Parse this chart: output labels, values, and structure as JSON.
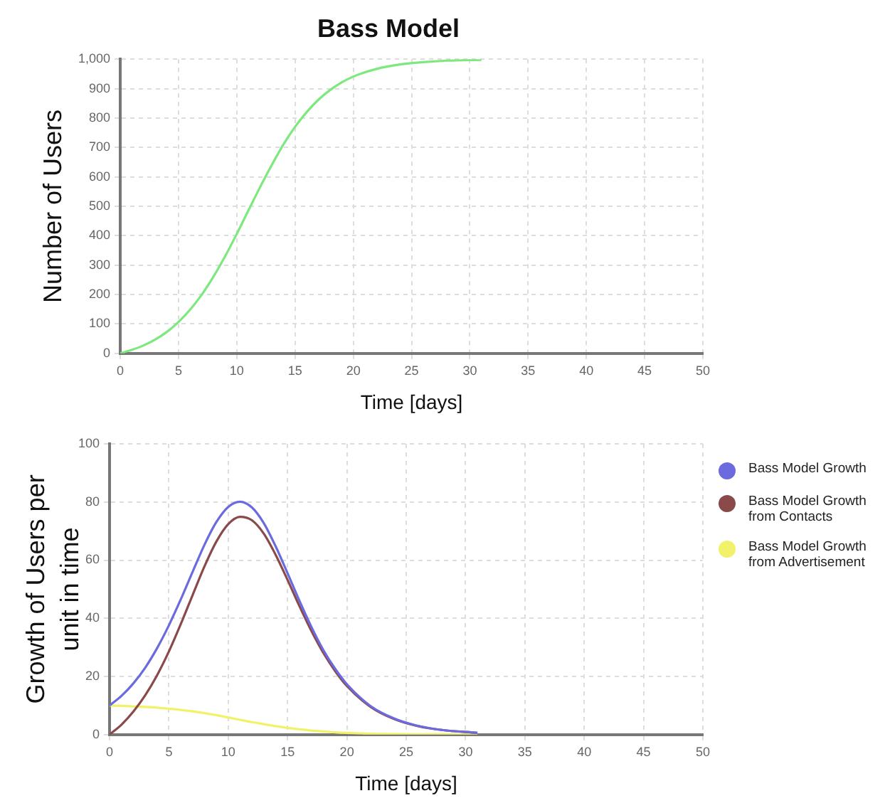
{
  "chart_data": [
    {
      "type": "line",
      "title": "Bass Model",
      "xlabel": "Time [days]",
      "ylabel": "Number of Users",
      "x": [
        0,
        1,
        2,
        3,
        4,
        5,
        6,
        7,
        8,
        9,
        10,
        11,
        12,
        13,
        14,
        15,
        16,
        17,
        18,
        19,
        20,
        22,
        24,
        26,
        28,
        31
      ],
      "series": [
        {
          "color": "#7de87d",
          "values": [
            0,
            12,
            27,
            47,
            73,
            107,
            149,
            200,
            261,
            330,
            406,
            486,
            565,
            640,
            710,
            770,
            820,
            862,
            895,
            921,
            941,
            967,
            982,
            990,
            995,
            998
          ]
        }
      ],
      "xlim": [
        0,
        50
      ],
      "xticks": [
        0,
        5,
        10,
        15,
        20,
        25,
        30,
        35,
        40,
        45,
        50
      ],
      "ylim": [
        0,
        1000
      ],
      "yticks": [
        0,
        100,
        200,
        300,
        400,
        500,
        600,
        700,
        800,
        900,
        {
          "value": 1000,
          "label": "1,000"
        }
      ],
      "grid": true
    },
    {
      "type": "line",
      "xlabel": "Time [days]",
      "ylabel": "Growth of Users per unit in time",
      "x": [
        0,
        1,
        2,
        3,
        4,
        5,
        6,
        7,
        8,
        9,
        10,
        11,
        12,
        13,
        14,
        15,
        16,
        17,
        18,
        19,
        20,
        22,
        24,
        26,
        28,
        31
      ],
      "series": [
        {
          "name": "Bass Model Growth",
          "color": "#6b6bdf",
          "values": [
            10,
            13.3,
            17.6,
            23,
            29.7,
            37.6,
            46.5,
            56,
            65.3,
            73.1,
            78.3,
            80.1,
            78.1,
            72.7,
            64.7,
            55.5,
            46,
            37.1,
            29.2,
            22.7,
            17.3,
            9.8,
            5.5,
            3,
            1.6,
            0.6
          ]
        },
        {
          "name": "Bass Model Growth from Contacts",
          "color": "#8b4a4a",
          "values": [
            0,
            3.4,
            7.9,
            13.5,
            20.4,
            28.6,
            38,
            48,
            57.9,
            66.4,
            72.4,
            74.9,
            73.7,
            69.1,
            61.8,
            53.2,
            44.2,
            35.7,
            28.2,
            21.9,
            16.7,
            9.5,
            5.3,
            2.9,
            1.6,
            0.6
          ]
        },
        {
          "name": "Bass Model Growth from Advertisement",
          "color": "#f2f26a",
          "values": [
            10,
            9.9,
            9.7,
            9.5,
            9.3,
            8.9,
            8.5,
            8,
            7.4,
            6.7,
            5.9,
            5.1,
            4.3,
            3.6,
            2.9,
            2.3,
            1.8,
            1.4,
            1.1,
            0.8,
            0.6,
            0.3,
            0.2,
            0.1,
            0.1,
            0
          ]
        }
      ],
      "xlim": [
        0,
        50
      ],
      "xticks": [
        0,
        5,
        10,
        15,
        20,
        25,
        30,
        35,
        40,
        45,
        50
      ],
      "ylim": [
        0,
        100
      ],
      "yticks": [
        0,
        20,
        40,
        60,
        80,
        100
      ],
      "grid": true,
      "legend": "right"
    }
  ]
}
